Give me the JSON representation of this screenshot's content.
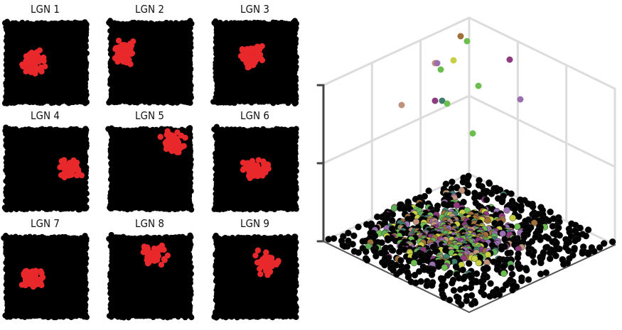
{
  "panels": [
    {
      "title": "LGN 1"
    },
    {
      "title": "LGN 2"
    },
    {
      "title": "LGN 3"
    },
    {
      "title": "LGN 4"
    },
    {
      "title": "LGN 5"
    },
    {
      "title": "LGN 6"
    },
    {
      "title": "LGN 7"
    },
    {
      "title": "LGN 8"
    },
    {
      "title": "LGN 9"
    }
  ]
}
